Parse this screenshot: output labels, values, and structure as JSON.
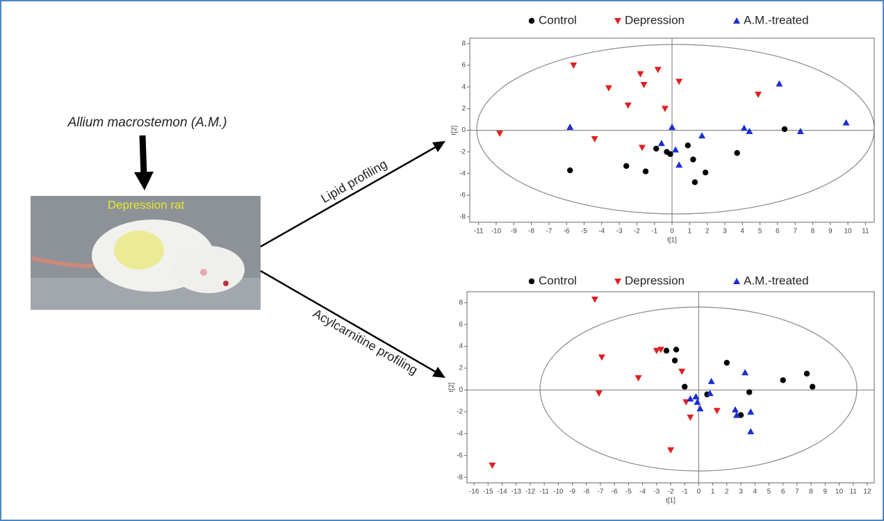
{
  "diagram": {
    "input_label": "Allium macrostemon (A.M.)",
    "image_label": "Depression rat",
    "arrows": [
      "Lipid profiling",
      "Acylcarnitine profiling"
    ]
  },
  "chart_data": [
    {
      "type": "scatter",
      "xlabel": "t[1]",
      "ylabel": "t[2]",
      "xlim": [
        -11.5,
        11.5
      ],
      "ylim": [
        -8.5,
        8.5
      ],
      "xticks": [
        -11,
        -10,
        -9,
        -8,
        -7,
        -6,
        -5,
        -4,
        -3,
        -2,
        -1,
        0,
        1,
        2,
        3,
        4,
        5,
        6,
        7,
        8,
        9,
        10,
        11
      ],
      "yticks": [
        -8,
        -6,
        -4,
        -2,
        0,
        2,
        4,
        6,
        8
      ],
      "series": [
        {
          "name": "Control",
          "color": "#000000",
          "marker": "circle",
          "x": [
            -5.8,
            -2.6,
            -1.5,
            -0.9,
            -0.3,
            -0.1,
            0.9,
            1.2,
            1.3,
            1.9,
            3.7,
            6.4
          ],
          "values": [
            -3.7,
            -3.3,
            -3.8,
            -1.7,
            -2.0,
            -2.2,
            -1.4,
            -2.7,
            -4.8,
            -3.9,
            -2.1,
            0.1
          ]
        },
        {
          "name": "Depression",
          "color": "#e02020",
          "marker": "triangle-down",
          "x": [
            -9.8,
            -5.6,
            -4.4,
            -3.6,
            -2.5,
            -1.8,
            -1.6,
            -1.7,
            -0.8,
            -0.4,
            0.4,
            4.9
          ],
          "values": [
            -0.3,
            6.0,
            -0.8,
            3.9,
            2.3,
            5.2,
            4.2,
            -1.6,
            5.6,
            2.0,
            4.5,
            3.3
          ]
        },
        {
          "name": "A.M.-treated",
          "color": "#1a2fd0",
          "marker": "triangle-up",
          "x": [
            -5.8,
            -0.6,
            0.0,
            0.2,
            0.4,
            1.7,
            4.1,
            4.4,
            6.1,
            7.3,
            9.9
          ],
          "values": [
            0.3,
            -1.2,
            0.3,
            -1.8,
            -3.2,
            -0.5,
            0.2,
            -0.1,
            4.3,
            -0.1,
            0.7
          ]
        }
      ]
    },
    {
      "type": "scatter",
      "xlabel": "t[1]",
      "ylabel": "t[2]",
      "xlim": [
        -16.5,
        12.5
      ],
      "ylim": [
        -8.5,
        9
      ],
      "xticks": [
        -16,
        -15,
        -14,
        -13,
        -12,
        -11,
        -10,
        -9,
        -8,
        -7,
        -6,
        -5,
        -4,
        -3,
        -2,
        -1,
        0,
        1,
        2,
        3,
        4,
        5,
        6,
        7,
        8,
        9,
        10,
        11,
        12
      ],
      "yticks": [
        -8,
        -6,
        -4,
        -2,
        0,
        2,
        4,
        6,
        8
      ],
      "series": [
        {
          "name": "Control",
          "color": "#000000",
          "marker": "circle",
          "x": [
            -1.6,
            -2.3,
            -1.7,
            -1.0,
            0.6,
            2.0,
            3.0,
            3.6,
            6.0,
            7.7,
            8.1
          ],
          "values": [
            3.7,
            3.6,
            2.7,
            0.3,
            -0.4,
            2.5,
            -2.3,
            -0.2,
            0.9,
            1.5,
            0.3
          ]
        },
        {
          "name": "Depression",
          "color": "#e02020",
          "marker": "triangle-down",
          "x": [
            -14.7,
            -7.4,
            -6.9,
            -7.1,
            -4.3,
            -3.0,
            -2.7,
            -2.0,
            -1.2,
            -0.9,
            -0.6,
            1.3
          ],
          "values": [
            -6.9,
            8.3,
            3.0,
            -0.3,
            1.1,
            3.6,
            3.7,
            -5.5,
            1.7,
            -1.1,
            -2.5,
            -1.9
          ]
        },
        {
          "name": "A.M.-treated",
          "color": "#1a2fd0",
          "marker": "triangle-up",
          "x": [
            -0.6,
            -0.2,
            0.1,
            0.9,
            0.8,
            2.6,
            2.7,
            3.3,
            3.7,
            3.7,
            -0.1
          ],
          "values": [
            -0.8,
            -0.6,
            -1.7,
            0.8,
            -0.3,
            -1.8,
            -2.3,
            1.6,
            -2.0,
            -3.8,
            -1.1
          ]
        }
      ]
    }
  ]
}
